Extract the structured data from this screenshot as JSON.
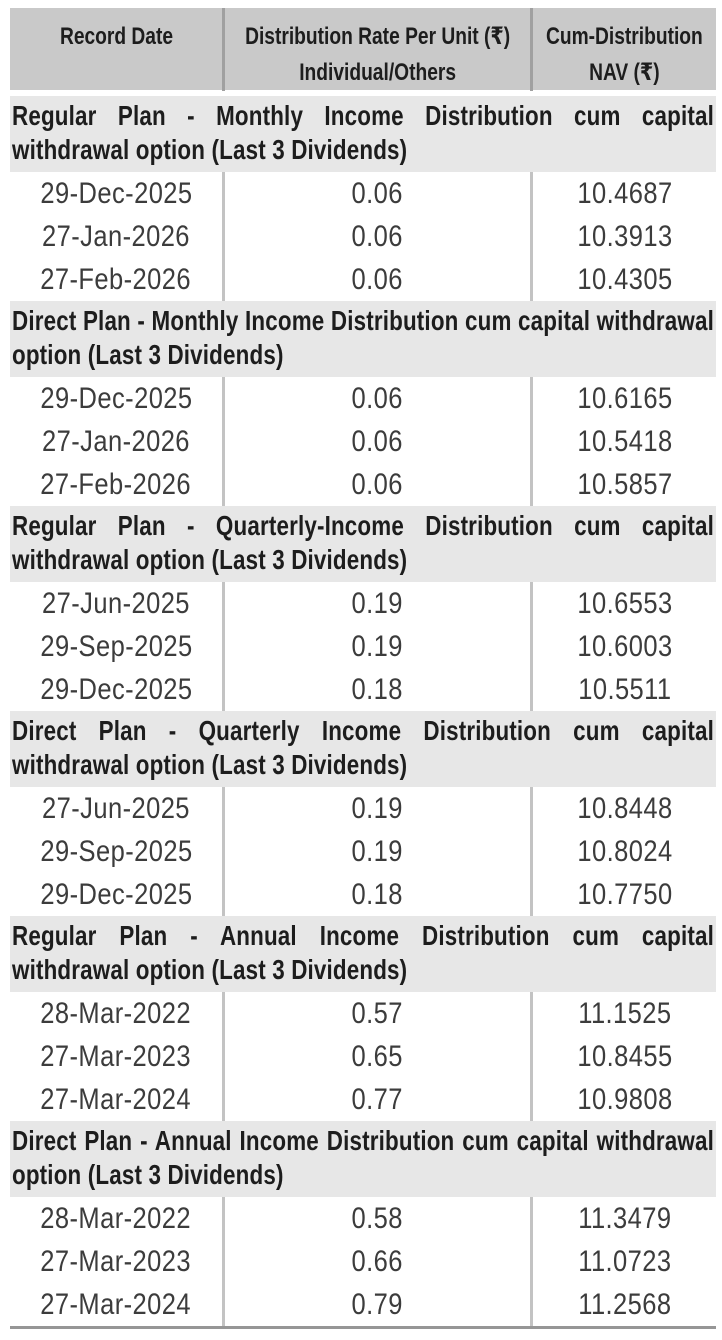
{
  "header": {
    "record_date": "Record Date",
    "rate_line1": "Distribution Rate Per Unit (₹)",
    "rate_line2": "Individual/Others",
    "nav_line1": "Cum-Distribution",
    "nav_line2": "NAV (₹)"
  },
  "sections": [
    {
      "title": "Regular Plan - Monthly Income Distribution cum capital withdrawal option (Last 3 Dividends)",
      "rows": [
        [
          "29-Dec-2025",
          "0.06",
          "10.4687"
        ],
        [
          "27-Jan-2026",
          "0.06",
          "10.3913"
        ],
        [
          "27-Feb-2026",
          "0.06",
          "10.4305"
        ]
      ]
    },
    {
      "title": "Direct Plan - Monthly Income Distribution cum capital withdrawal option (Last 3 Dividends)",
      "rows": [
        [
          "29-Dec-2025",
          "0.06",
          "10.6165"
        ],
        [
          "27-Jan-2026",
          "0.06",
          "10.5418"
        ],
        [
          "27-Feb-2026",
          "0.06",
          "10.5857"
        ]
      ]
    },
    {
      "title": "Regular Plan - Quarterly-Income Distribution cum capital withdrawal option (Last 3 Dividends)",
      "rows": [
        [
          "27-Jun-2025",
          "0.19",
          "10.6553"
        ],
        [
          "29-Sep-2025",
          "0.19",
          "10.6003"
        ],
        [
          "29-Dec-2025",
          "0.18",
          "10.5511"
        ]
      ]
    },
    {
      "title": "Direct Plan - Quarterly Income Distribution cum capital withdrawal option (Last 3 Dividends)",
      "rows": [
        [
          "27-Jun-2025",
          "0.19",
          "10.8448"
        ],
        [
          "29-Sep-2025",
          "0.19",
          "10.8024"
        ],
        [
          "29-Dec-2025",
          "0.18",
          "10.7750"
        ]
      ]
    },
    {
      "title": "Regular Plan - Annual Income Distribution cum capital withdrawal option (Last 3 Dividends)",
      "rows": [
        [
          "28-Mar-2022",
          "0.57",
          "11.1525"
        ],
        [
          "27-Mar-2023",
          "0.65",
          "10.8455"
        ],
        [
          "27-Mar-2024",
          "0.77",
          "10.9808"
        ]
      ]
    },
    {
      "title": "Direct Plan - Annual Income Distribution cum capital withdrawal option (Last 3 Dividends)",
      "rows": [
        [
          "28-Mar-2022",
          "0.58",
          "11.3479"
        ],
        [
          "27-Mar-2023",
          "0.66",
          "11.0723"
        ],
        [
          "27-Mar-2024",
          "0.79",
          "11.2568"
        ]
      ]
    }
  ],
  "colors": {
    "header_bg": "#c9c9c9",
    "section_bg": "#e7e7e7",
    "divider_data": "#c3c3c3",
    "divider_header": "#a0a0a0",
    "title_text": "#1d1d1d",
    "data_text": "#3c3c3c",
    "bottom_rule": "#969696"
  }
}
